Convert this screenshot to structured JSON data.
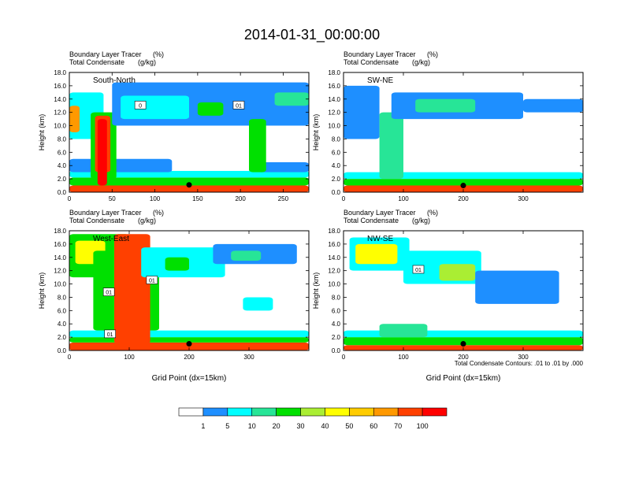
{
  "title": "2014-01-31_00:00:00",
  "colors": {
    "levels": [
      "#ffffff",
      "#1e8fff",
      "#00ffff",
      "#27e597",
      "#00e000",
      "#aaee33",
      "#ffff00",
      "#ffcc00",
      "#ff9900",
      "#ff4000",
      "#ff0000"
    ],
    "contour": "#000000",
    "background": "#ffffff"
  },
  "colorbar": {
    "labels": [
      "1",
      "5",
      "10",
      "20",
      "30",
      "40",
      "50",
      "60",
      "70",
      "100"
    ]
  },
  "footnote": "Total Condensate Contours: .01 to .01 by .000",
  "chart_data": [
    {
      "type": "heatmap",
      "panel": "South-North",
      "label": "South-North",
      "field_title": "Boundary Layer Tracer",
      "field_unit": "(%)",
      "contour_title": "Total Condensate",
      "contour_unit": "(g/kg)",
      "xlabel": "",
      "ylabel": "Height (km)",
      "xlim": [
        0,
        280
      ],
      "ylim": [
        0,
        18
      ],
      "xticks": [
        0,
        50,
        100,
        150,
        200,
        250
      ],
      "yticks": [
        0,
        2,
        4,
        6,
        8,
        10,
        12,
        14,
        16,
        18
      ],
      "ytick_labels": [
        "0.0",
        "2.0",
        "4.0",
        "6.0",
        "8.0",
        "10.0",
        "12.0",
        "14.0",
        "16.0",
        "18.0"
      ],
      "marker": {
        "x": 140,
        "y": 1.1
      },
      "contour_labels": [
        {
          "x": 83,
          "y": 13.1,
          "text": "0"
        },
        {
          "x": 198,
          "y": 13.1,
          "text": "01"
        }
      ],
      "blobs": [
        {
          "x0": 0,
          "x1": 280,
          "y0": 0.0,
          "y1": 1.0,
          "lvl": 9
        },
        {
          "x0": 0,
          "x1": 280,
          "y0": 1.0,
          "y1": 2.2,
          "lvl": 4
        },
        {
          "x0": 0,
          "x1": 280,
          "y0": 2.2,
          "y1": 3.2,
          "lvl": 2
        },
        {
          "x0": 0,
          "x1": 120,
          "y0": 3.0,
          "y1": 5.0,
          "lvl": 1
        },
        {
          "x0": 220,
          "x1": 280,
          "y0": 3.0,
          "y1": 4.5,
          "lvl": 1
        },
        {
          "x0": 0,
          "x1": 40,
          "y0": 8.0,
          "y1": 15.0,
          "lvl": 2
        },
        {
          "x0": 0,
          "x1": 12,
          "y0": 9.0,
          "y1": 13.0,
          "lvl": 8
        },
        {
          "x0": 25,
          "x1": 55,
          "y0": 2.0,
          "y1": 12.0,
          "lvl": 4
        },
        {
          "x0": 30,
          "x1": 48,
          "y0": 3.0,
          "y1": 11.5,
          "lvl": 9
        },
        {
          "x0": 33,
          "x1": 44,
          "y0": 1.0,
          "y1": 11.0,
          "lvl": 10
        },
        {
          "x0": 50,
          "x1": 280,
          "y0": 10.0,
          "y1": 16.5,
          "lvl": 1
        },
        {
          "x0": 60,
          "x1": 140,
          "y0": 11.0,
          "y1": 14.5,
          "lvl": 2
        },
        {
          "x0": 150,
          "x1": 180,
          "y0": 11.5,
          "y1": 13.5,
          "lvl": 4
        },
        {
          "x0": 240,
          "x1": 280,
          "y0": 13.0,
          "y1": 15.0,
          "lvl": 3
        },
        {
          "x0": 210,
          "x1": 230,
          "y0": 3.0,
          "y1": 11.0,
          "lvl": 4
        }
      ]
    },
    {
      "type": "heatmap",
      "panel": "SW-NE",
      "label": "SW-NE",
      "field_title": "Boundary Layer Tracer",
      "field_unit": "(%)",
      "contour_title": "Total Condensate",
      "contour_unit": "(g/kg)",
      "xlabel": "",
      "ylabel": "Height (km)",
      "xlim": [
        0,
        400
      ],
      "ylim": [
        0,
        18
      ],
      "xticks": [
        0,
        100,
        200,
        300
      ],
      "yticks": [
        0,
        2,
        4,
        6,
        8,
        10,
        12,
        14,
        16,
        18
      ],
      "ytick_labels": [
        "0.0",
        "2.0",
        "4.0",
        "6.0",
        "8.0",
        "10.0",
        "12.0",
        "14.0",
        "16.0",
        "18.0"
      ],
      "marker": {
        "x": 200,
        "y": 1.0
      },
      "contour_labels": [],
      "blobs": [
        {
          "x0": 0,
          "x1": 400,
          "y0": 0.0,
          "y1": 1.0,
          "lvl": 9
        },
        {
          "x0": 0,
          "x1": 400,
          "y0": 1.0,
          "y1": 2.0,
          "lvl": 4
        },
        {
          "x0": 0,
          "x1": 400,
          "y0": 2.0,
          "y1": 3.0,
          "lvl": 2
        },
        {
          "x0": 0,
          "x1": 60,
          "y0": 8.0,
          "y1": 16.0,
          "lvl": 1
        },
        {
          "x0": 60,
          "x1": 100,
          "y0": 2.0,
          "y1": 12.0,
          "lvl": 3
        },
        {
          "x0": 80,
          "x1": 300,
          "y0": 11.0,
          "y1": 15.0,
          "lvl": 1
        },
        {
          "x0": 120,
          "x1": 220,
          "y0": 12.0,
          "y1": 14.0,
          "lvl": 3
        },
        {
          "x0": 300,
          "x1": 400,
          "y0": 12.0,
          "y1": 14.0,
          "lvl": 1
        }
      ]
    },
    {
      "type": "heatmap",
      "panel": "West-East",
      "label": "West-East",
      "field_title": "Boundary Layer Tracer",
      "field_unit": "(%)",
      "contour_title": "Total Condensate",
      "contour_unit": "(g/kg)",
      "xlabel": "Grid Point (dx=15km)",
      "ylabel": "Height (km)",
      "xlim": [
        0,
        400
      ],
      "ylim": [
        0,
        18
      ],
      "xticks": [
        0,
        100,
        200,
        300
      ],
      "yticks": [
        0,
        2,
        4,
        6,
        8,
        10,
        12,
        14,
        16,
        18
      ],
      "ytick_labels": [
        "0.0",
        "2.0",
        "4.0",
        "6.0",
        "8.0",
        "10.0",
        "12.0",
        "14.0",
        "16.0",
        "18.0"
      ],
      "marker": {
        "x": 200,
        "y": 1.0
      },
      "contour_labels": [
        {
          "x": 138,
          "y": 10.6,
          "text": "01"
        },
        {
          "x": 66,
          "y": 8.8,
          "text": "01"
        },
        {
          "x": 68,
          "y": 2.5,
          "text": "01"
        }
      ],
      "blobs": [
        {
          "x0": 0,
          "x1": 400,
          "y0": 0.0,
          "y1": 1.2,
          "lvl": 9
        },
        {
          "x0": 0,
          "x1": 400,
          "y0": 1.2,
          "y1": 2.0,
          "lvl": 4
        },
        {
          "x0": 0,
          "x1": 400,
          "y0": 2.0,
          "y1": 3.0,
          "lvl": 2
        },
        {
          "x0": 0,
          "x1": 100,
          "y0": 11.0,
          "y1": 17.5,
          "lvl": 4
        },
        {
          "x0": 10,
          "x1": 60,
          "y0": 13.0,
          "y1": 16.5,
          "lvl": 6
        },
        {
          "x0": 40,
          "x1": 150,
          "y0": 3.0,
          "y1": 15.0,
          "lvl": 4
        },
        {
          "x0": 75,
          "x1": 135,
          "y0": 1.0,
          "y1": 17.5,
          "lvl": 9
        },
        {
          "x0": 120,
          "x1": 260,
          "y0": 11.0,
          "y1": 15.5,
          "lvl": 2
        },
        {
          "x0": 160,
          "x1": 200,
          "y0": 12.0,
          "y1": 14.0,
          "lvl": 4
        },
        {
          "x0": 240,
          "x1": 380,
          "y0": 13.0,
          "y1": 16.0,
          "lvl": 1
        },
        {
          "x0": 270,
          "x1": 320,
          "y0": 13.5,
          "y1": 15.0,
          "lvl": 3
        },
        {
          "x0": 290,
          "x1": 340,
          "y0": 6.0,
          "y1": 8.0,
          "lvl": 2
        }
      ]
    },
    {
      "type": "heatmap",
      "panel": "NW-SE",
      "label": "NW-SE",
      "field_title": "Boundary Layer Tracer",
      "field_unit": "(%)",
      "contour_title": "Total Condensate",
      "contour_unit": "(g/kg)",
      "xlabel": "Grid Point (dx=15km)",
      "ylabel": "Height (km)",
      "xlim": [
        0,
        400
      ],
      "ylim": [
        0,
        18
      ],
      "xticks": [
        0,
        100,
        200,
        300
      ],
      "yticks": [
        0,
        2,
        4,
        6,
        8,
        10,
        12,
        14,
        16,
        18
      ],
      "ytick_labels": [
        "0.0",
        "2.0",
        "4.0",
        "6.0",
        "8.0",
        "10.0",
        "12.0",
        "14.0",
        "16.0",
        "18.0"
      ],
      "marker": {
        "x": 200,
        "y": 1.0
      },
      "contour_labels": [
        {
          "x": 125,
          "y": 12.2,
          "text": "01"
        }
      ],
      "blobs": [
        {
          "x0": 0,
          "x1": 400,
          "y0": 0.0,
          "y1": 0.8,
          "lvl": 9
        },
        {
          "x0": 0,
          "x1": 400,
          "y0": 0.8,
          "y1": 2.0,
          "lvl": 4
        },
        {
          "x0": 0,
          "x1": 400,
          "y0": 2.0,
          "y1": 3.0,
          "lvl": 2
        },
        {
          "x0": 10,
          "x1": 110,
          "y0": 12.0,
          "y1": 17.0,
          "lvl": 2
        },
        {
          "x0": 20,
          "x1": 90,
          "y0": 13.0,
          "y1": 16.0,
          "lvl": 6
        },
        {
          "x0": 100,
          "x1": 230,
          "y0": 10.0,
          "y1": 15.0,
          "lvl": 2
        },
        {
          "x0": 160,
          "x1": 220,
          "y0": 10.5,
          "y1": 13.0,
          "lvl": 5
        },
        {
          "x0": 220,
          "x1": 360,
          "y0": 7.0,
          "y1": 12.0,
          "lvl": 1
        },
        {
          "x0": 60,
          "x1": 140,
          "y0": 2.0,
          "y1": 4.0,
          "lvl": 3
        }
      ]
    }
  ]
}
